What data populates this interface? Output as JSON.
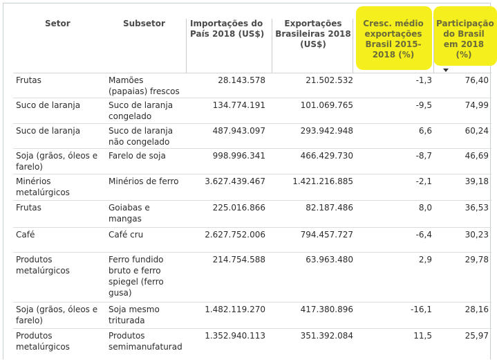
{
  "table": {
    "headers": {
      "setor": "Setor",
      "subsetor": "Subsetor",
      "importacoes": "Importações do País 2018 (US$)",
      "exportacoes": "Exportações Brasileiras 2018 (US$)",
      "crescimento": "Cresc. médio exportações Brasil 2015-2018 (%)",
      "participacao": "Participação do Brasil em 2018 (%)"
    },
    "rows": [
      {
        "setor": "Frutas",
        "subsetor": "Mamões (papaias) frescos",
        "importacoes": "28.143.578",
        "exportacoes": "21.502.532",
        "crescimento": "-1,3",
        "participacao": "76,40"
      },
      {
        "setor": "Suco de laranja",
        "subsetor": "Suco de laranja congelado",
        "importacoes": "134.774.191",
        "exportacoes": "101.069.765",
        "crescimento": "-9,5",
        "participacao": "74,99"
      },
      {
        "setor": "Suco de laranja",
        "subsetor": "Suco de laranja não congelado",
        "importacoes": "487.943.097",
        "exportacoes": "293.942.948",
        "crescimento": "6,6",
        "participacao": "60,24"
      },
      {
        "setor": "Soja (grãos, óleos e farelo)",
        "subsetor": "Farelo de soja",
        "importacoes": "998.996.341",
        "exportacoes": "466.429.730",
        "crescimento": "-8,7",
        "participacao": "46,69"
      },
      {
        "setor": "Minérios metalúrgicos",
        "subsetor": "Minérios de ferro",
        "importacoes": "3.627.439.467",
        "exportacoes": "1.421.216.885",
        "crescimento": "-2,1",
        "participacao": "39,18"
      },
      {
        "setor": "Frutas",
        "subsetor": "Goiabas e mangas",
        "importacoes": "225.016.866",
        "exportacoes": "82.187.486",
        "crescimento": "8,0",
        "participacao": "36,53"
      },
      {
        "setor": "Café",
        "subsetor": "Café cru",
        "importacoes": "2.627.752.006",
        "exportacoes": "794.457.727",
        "crescimento": "-6,4",
        "participacao": "30,23"
      },
      {
        "setor": "Produtos metalúrgicos",
        "subsetor": "Ferro fundido bruto e ferro spiegel (ferro gusa)",
        "importacoes": "214.754.588",
        "exportacoes": "63.963.480",
        "crescimento": "2,9",
        "participacao": "29,78"
      },
      {
        "setor": "Soja (grãos, óleos e farelo)",
        "subsetor": "Soja mesmo triturada",
        "importacoes": "1.482.119.270",
        "exportacoes": "417.380.896",
        "crescimento": "-16,1",
        "participacao": "28,16"
      },
      {
        "setor": "Produtos metalúrgicos",
        "subsetor": "Produtos semimanufaturad",
        "importacoes": "1.352.940.113",
        "exportacoes": "351.392.084",
        "crescimento": "11,5",
        "participacao": "25,97"
      }
    ]
  },
  "highlight_color": "#f6ef1e",
  "sort_indicator_icon": "sort-descending-caret-icon"
}
